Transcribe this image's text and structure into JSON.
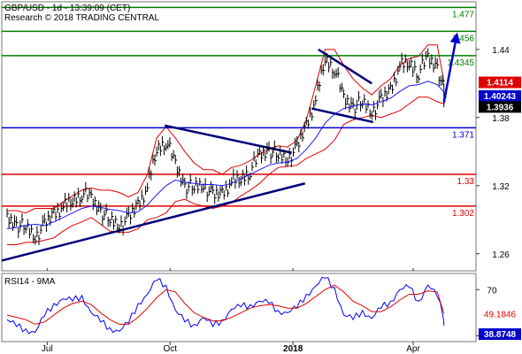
{
  "header": {
    "title": "GBP/USD - 1d - 13:39:09 (CET)",
    "subtitle": "Research © 2018 TRADING CENTRAL"
  },
  "colors": {
    "price": "#000000",
    "bollinger": "#e00000",
    "moving_average": "#1a1aff",
    "support": "#e00000",
    "pivot": "#0000cc",
    "resistance": "#008000",
    "trendline": "#00007a",
    "forecast_arrow": "#0000cc",
    "rsi": "#0000ff",
    "rsi_ma": "#e00000",
    "last_price_box": "#000000",
    "ma_box": "#0000cc",
    "bb_box": "#e00000"
  },
  "chart_data": [
    {
      "type": "line",
      "name": "price-panel",
      "x": [
        "2017-06-01",
        "2017-06-08",
        "2017-06-15",
        "2017-06-22",
        "2017-06-29",
        "2017-07-06",
        "2017-07-13",
        "2017-07-20",
        "2017-07-27",
        "2017-08-03",
        "2017-08-10",
        "2017-08-17",
        "2017-08-24",
        "2017-08-31",
        "2017-09-07",
        "2017-09-14",
        "2017-09-21",
        "2017-09-28",
        "2017-10-05",
        "2017-10-12",
        "2017-10-19",
        "2017-10-26",
        "2017-11-02",
        "2017-11-09",
        "2017-11-16",
        "2017-11-23",
        "2017-11-30",
        "2017-12-07",
        "2017-12-14",
        "2017-12-21",
        "2017-12-28",
        "2018-01-04",
        "2018-01-11",
        "2018-01-18",
        "2018-01-25",
        "2018-02-01",
        "2018-02-08",
        "2018-02-15",
        "2018-02-22",
        "2018-03-01",
        "2018-03-08",
        "2018-03-15",
        "2018-03-22",
        "2018-03-29",
        "2018-04-05",
        "2018-04-12",
        "2018-04-19",
        "2018-04-24"
      ],
      "series": [
        {
          "values": [
            1.291,
            1.286,
            1.283,
            1.276,
            1.284,
            1.296,
            1.301,
            1.307,
            1.314,
            1.308,
            1.298,
            1.289,
            1.286,
            1.29,
            1.304,
            1.318,
            1.352,
            1.36,
            1.338,
            1.32,
            1.318,
            1.322,
            1.31,
            1.314,
            1.323,
            1.326,
            1.334,
            1.346,
            1.352,
            1.346,
            1.345,
            1.352,
            1.374,
            1.395,
            1.432,
            1.424,
            1.396,
            1.39,
            1.393,
            1.386,
            1.394,
            1.405,
            1.425,
            1.428,
            1.42,
            1.432,
            1.425,
            1.3936
          ]
        },
        {
          "values": [
            1.282,
            1.283,
            1.285,
            1.286,
            1.285,
            1.288,
            1.292,
            1.296,
            1.3,
            1.302,
            1.301,
            1.299,
            1.298,
            1.296,
            1.297,
            1.303,
            1.312,
            1.32,
            1.325,
            1.323,
            1.322,
            1.321,
            1.321,
            1.32,
            1.322,
            1.326,
            1.33,
            1.334,
            1.338,
            1.34,
            1.341,
            1.344,
            1.352,
            1.362,
            1.375,
            1.383,
            1.388,
            1.39,
            1.392,
            1.391,
            1.394,
            1.397,
            1.403,
            1.408,
            1.409,
            1.412,
            1.409,
            1.40243
          ]
        },
        {
          "values": [
            1.268,
            1.268,
            1.27,
            1.27,
            1.272,
            1.274,
            1.28,
            1.285,
            1.288,
            1.292,
            1.286,
            1.28,
            1.279,
            1.279,
            1.282,
            1.29,
            1.292,
            1.296,
            1.306,
            1.308,
            1.304,
            1.302,
            1.3,
            1.302,
            1.305,
            1.311,
            1.316,
            1.322,
            1.33,
            1.336,
            1.337,
            1.338,
            1.344,
            1.348,
            1.352,
            1.36,
            1.374,
            1.378,
            1.38,
            1.382,
            1.38,
            1.383,
            1.386,
            1.392,
            1.398,
            1.398,
            1.394,
            1.392
          ]
        },
        {
          "values": [
            1.298,
            1.298,
            1.296,
            1.3,
            1.3,
            1.3,
            1.306,
            1.311,
            1.316,
            1.318,
            1.316,
            1.316,
            1.314,
            1.31,
            1.314,
            1.33,
            1.362,
            1.372,
            1.362,
            1.35,
            1.34,
            1.334,
            1.334,
            1.33,
            1.336,
            1.338,
            1.342,
            1.348,
            1.352,
            1.355,
            1.354,
            1.36,
            1.378,
            1.408,
            1.44,
            1.44,
            1.426,
            1.414,
            1.406,
            1.4,
            1.408,
            1.414,
            1.426,
            1.432,
            1.434,
            1.444,
            1.444,
            1.4114
          ]
        }
      ],
      "annotations": {
        "resistance": [
          1.477,
          1.456,
          1.4345
        ],
        "pivot": 1.371,
        "support": [
          1.33,
          1.302
        ],
        "last_price": "1.3936",
        "ma_value": "1.40243",
        "bb_value": "1.4114"
      },
      "forecast_arrow": {
        "from_date": "2018-04-24",
        "from_value": 1.3936,
        "to_date": "2018-05-04",
        "to_value": 1.455
      },
      "trendlines": [
        {
          "from_date": "2017-05-28",
          "from_value": 1.254,
          "to_date": "2018-01-10",
          "to_value": 1.322
        },
        {
          "from_date": "2017-09-27",
          "from_value": 1.373,
          "to_date": "2017-12-31",
          "to_value": 1.349
        },
        {
          "from_date": "2018-01-20",
          "from_value": 1.44,
          "to_date": "2018-03-01",
          "to_value": 1.41
        },
        {
          "from_date": "2018-01-15",
          "from_value": 1.388,
          "to_date": "2018-03-02",
          "to_value": 1.376
        }
      ],
      "xaxis": {
        "type": "date",
        "range": [
          "2017-05-28",
          "2018-05-18"
        ],
        "tick_labels": [
          "Jul",
          "Oct",
          "2018",
          "Apr"
        ]
      },
      "yaxis": {
        "range": [
          1.245,
          1.482
        ],
        "ticks": [
          1.26,
          1.32,
          1.38,
          1.44
        ],
        "tick_labels": [
          "1.26",
          "1.32",
          "1.38",
          "1.44"
        ]
      },
      "grid": false
    },
    {
      "type": "line",
      "name": "rsi-panel",
      "title": "RSI14 - 9MA",
      "x": [
        "2017-06-01",
        "2017-06-08",
        "2017-06-15",
        "2017-06-22",
        "2017-06-29",
        "2017-07-06",
        "2017-07-13",
        "2017-07-20",
        "2017-07-27",
        "2017-08-03",
        "2017-08-10",
        "2017-08-17",
        "2017-08-24",
        "2017-08-31",
        "2017-09-07",
        "2017-09-14",
        "2017-09-21",
        "2017-09-28",
        "2017-10-05",
        "2017-10-12",
        "2017-10-19",
        "2017-10-26",
        "2017-11-02",
        "2017-11-09",
        "2017-11-16",
        "2017-11-23",
        "2017-11-30",
        "2017-12-07",
        "2017-12-14",
        "2017-12-21",
        "2017-12-28",
        "2018-01-04",
        "2018-01-11",
        "2018-01-18",
        "2018-01-25",
        "2018-02-01",
        "2018-02-08",
        "2018-02-15",
        "2018-02-22",
        "2018-03-01",
        "2018-03-08",
        "2018-03-15",
        "2018-03-22",
        "2018-03-29",
        "2018-04-05",
        "2018-04-12",
        "2018-04-19",
        "2018-04-24"
      ],
      "series": [
        {
          "values": [
            44,
            38,
            36,
            33,
            47,
            58,
            62,
            60,
            65,
            50,
            42,
            37,
            34,
            41,
            58,
            66,
            78,
            74,
            52,
            42,
            40,
            46,
            38,
            44,
            53,
            55,
            57,
            60,
            58,
            52,
            50,
            54,
            66,
            73,
            80,
            72,
            48,
            44,
            52,
            45,
            54,
            60,
            70,
            72,
            60,
            74,
            64,
            38.8748
          ]
        },
        {
          "values": [
            48,
            46,
            44,
            40,
            42,
            48,
            54,
            58,
            60,
            57,
            50,
            44,
            40,
            40,
            46,
            54,
            63,
            70,
            68,
            58,
            50,
            46,
            43,
            43,
            46,
            50,
            54,
            56,
            57,
            56,
            54,
            54,
            58,
            64,
            70,
            74,
            68,
            60,
            56,
            51,
            51,
            55,
            61,
            66,
            66,
            69,
            68,
            49.1846
          ]
        }
      ],
      "annotations": {
        "rsi_value": "38.8748",
        "rsi_ma_value": "49.1846"
      },
      "yaxis": {
        "range": [
          25,
          84
        ],
        "ticks": [
          70,
          30
        ],
        "tick_labels": [
          "70",
          "30"
        ]
      }
    }
  ]
}
